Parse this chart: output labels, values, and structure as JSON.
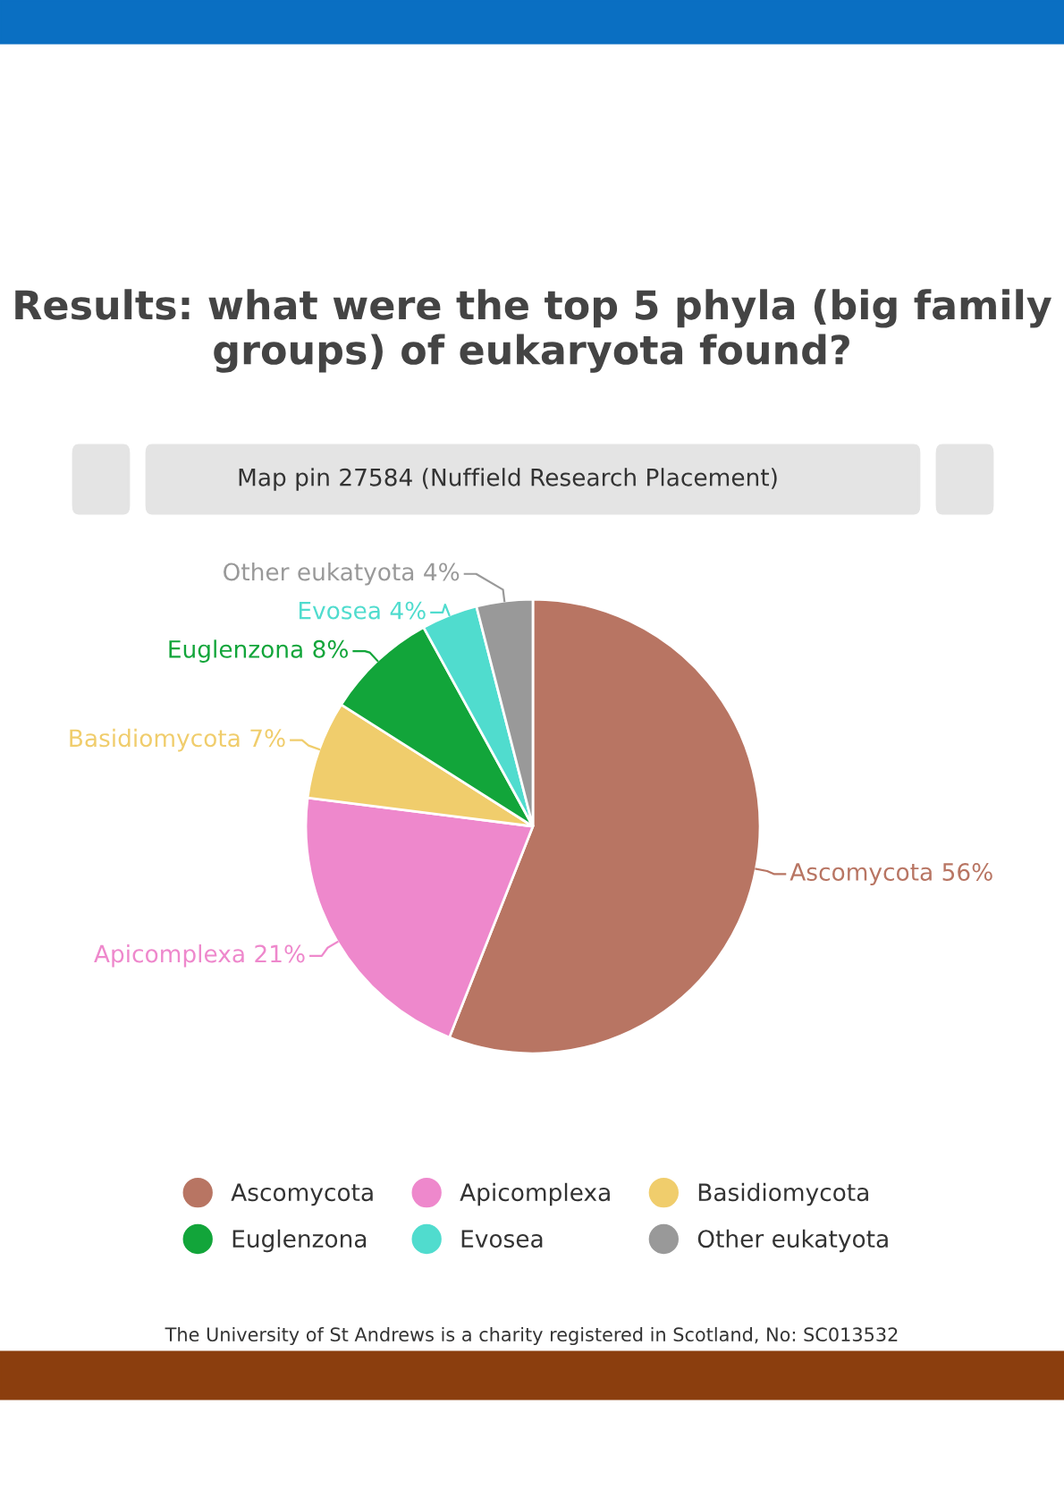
{
  "chart_data": {
    "type": "pie",
    "title": "Results: what were the top 5 phyla (big family groups) of eukaryota found?",
    "subtitle": "Map pin 27584 (Nuffield Research Placement)",
    "categories": [
      "Ascomycota",
      "Apicomplexa",
      "Basidiomycota",
      "Euglenzona",
      "Evosea",
      "Other eukatyota"
    ],
    "values": [
      56,
      21,
      7,
      8,
      4,
      4
    ],
    "value_labels": [
      "56%",
      "21%",
      "7%",
      "8%",
      "4%",
      "4%"
    ],
    "colors": [
      "#b87563",
      "#ee88cc",
      "#f0cd6c",
      "#12a53a",
      "#50dcce",
      "#999999"
    ],
    "legend": "bottom",
    "annotations": [
      "The University of St Andrews is a charity registered in Scotland, No: SC013532"
    ]
  }
}
